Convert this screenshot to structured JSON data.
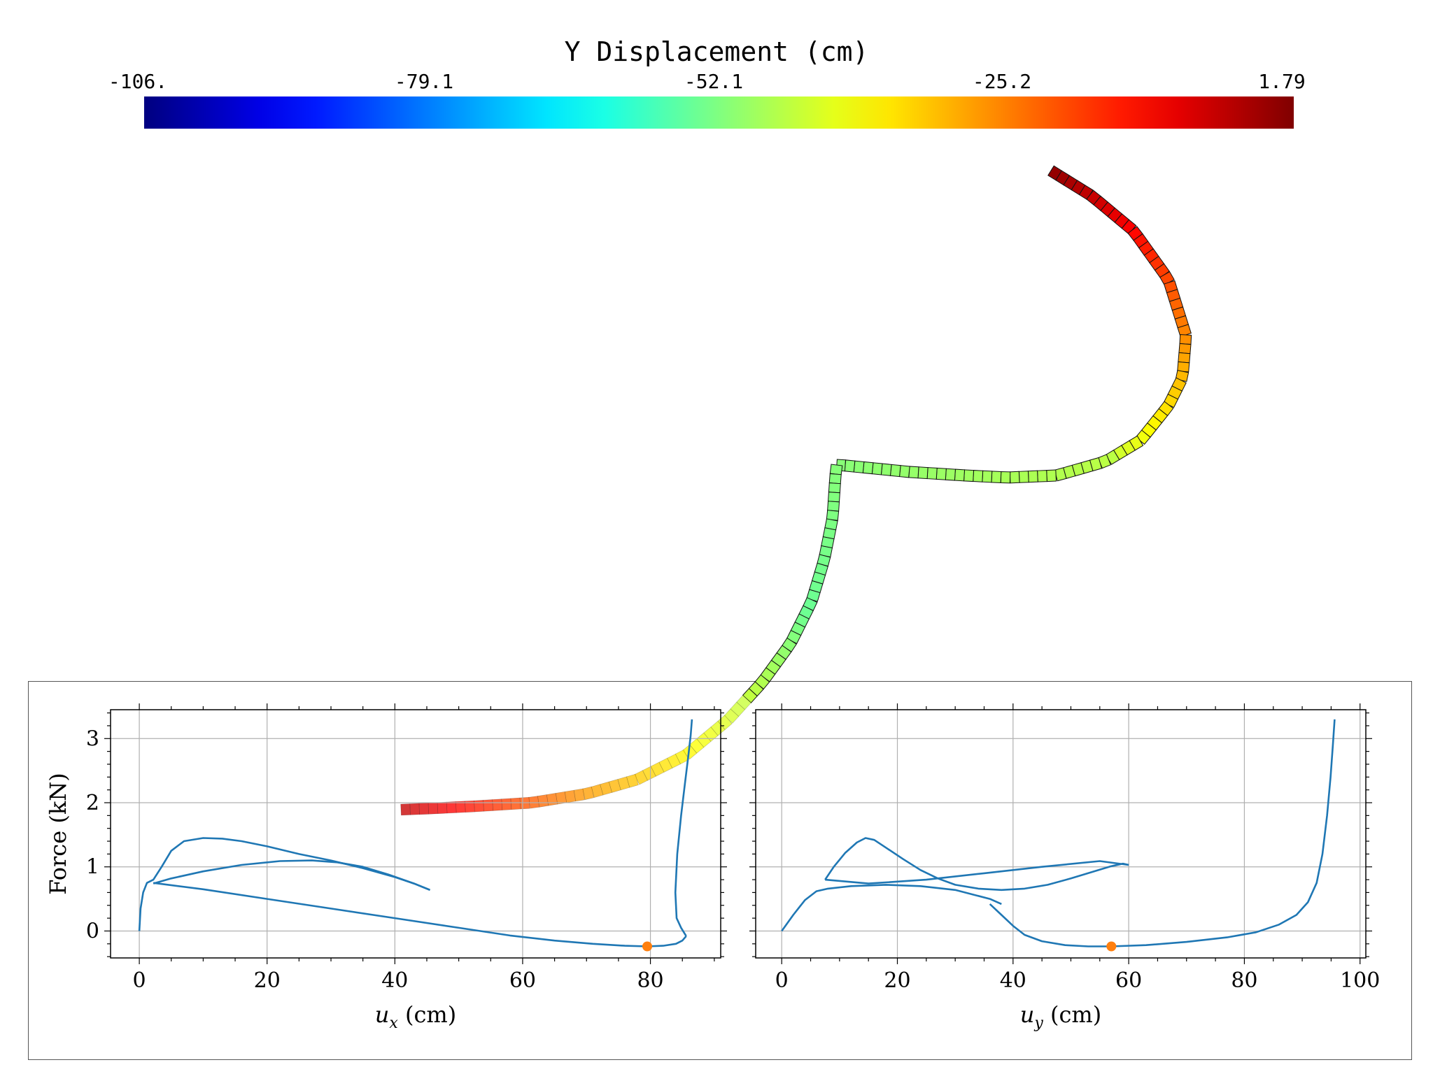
{
  "colorbar": {
    "title": "Y Displacement (cm)",
    "ticks": [
      "-106.",
      "-79.1",
      "-52.1",
      "-25.2",
      "1.79"
    ],
    "colormap": "jet",
    "range": [
      -106,
      1.79
    ]
  },
  "colors": {
    "line": "#1f77b4",
    "marker": "#ff7f0e",
    "grid": "#b0b0b0",
    "frame": "#555555"
  },
  "chart_data": [
    {
      "type": "line",
      "ylabel": "Force (kN)",
      "xlabel_main": "u",
      "xlabel_sub": "x",
      "xlabel_unit": " (cm)",
      "xticks": [
        0,
        20,
        40,
        60,
        80
      ],
      "yticks": [
        0,
        1,
        2,
        3
      ],
      "xlim": [
        -4.5,
        91
      ],
      "ylim": [
        -0.42,
        3.45
      ],
      "grid": true,
      "series": [
        {
          "x": [
            0,
            0.2,
            0.6,
            1.2,
            2.2,
            3.5,
            5,
            7,
            10,
            13,
            16,
            20,
            25,
            30,
            35,
            40,
            43,
            45.5
          ],
          "y": [
            0,
            0.35,
            0.6,
            0.75,
            0.8,
            1.0,
            1.25,
            1.4,
            1.45,
            1.44,
            1.4,
            1.32,
            1.2,
            1.1,
            0.98,
            0.84,
            0.74,
            0.64
          ]
        },
        {
          "x": [
            2.2,
            5,
            10,
            16,
            22,
            27,
            31,
            35,
            39,
            43,
            45.5
          ],
          "y": [
            0.74,
            0.82,
            0.93,
            1.03,
            1.09,
            1.1,
            1.07,
            1.0,
            0.88,
            0.74,
            0.64
          ]
        },
        {
          "x": [
            2.2,
            10,
            20,
            30,
            40,
            50,
            58,
            65,
            71,
            76,
            79.5,
            82,
            84,
            85,
            85.6
          ],
          "y": [
            0.75,
            0.65,
            0.5,
            0.35,
            0.2,
            0.05,
            -0.07,
            -0.15,
            -0.2,
            -0.23,
            -0.24,
            -0.23,
            -0.2,
            -0.15,
            -0.08
          ]
        },
        {
          "x": [
            85.6,
            84.8,
            84.1,
            83.9,
            84.2,
            84.8,
            85.4,
            85.9,
            86.3,
            86.5
          ],
          "y": [
            -0.08,
            0.05,
            0.2,
            0.6,
            1.2,
            1.8,
            2.3,
            2.7,
            3.05,
            3.3
          ]
        }
      ],
      "marker": {
        "x": 79.5,
        "y": -0.24
      }
    },
    {
      "type": "line",
      "xlabel_main": "u",
      "xlabel_sub": "y",
      "xlabel_unit": " (cm)",
      "xticks": [
        0,
        20,
        40,
        60,
        80,
        100
      ],
      "xlim": [
        -4.5,
        101
      ],
      "ylim": [
        -0.42,
        3.45
      ],
      "grid": true,
      "series": [
        {
          "x": [
            0,
            2,
            4,
            6,
            8,
            12,
            18,
            24,
            30,
            36,
            38
          ],
          "y": [
            0,
            0.25,
            0.48,
            0.62,
            0.66,
            0.7,
            0.72,
            0.7,
            0.64,
            0.5,
            0.42
          ]
        },
        {
          "x": [
            7.5,
            9,
            11,
            13,
            14.5,
            16,
            18,
            21,
            24,
            27,
            30,
            34,
            38,
            42,
            46,
            50,
            54,
            57,
            59,
            60
          ],
          "y": [
            0.8,
            1.0,
            1.22,
            1.38,
            1.45,
            1.42,
            1.3,
            1.12,
            0.95,
            0.82,
            0.72,
            0.66,
            0.64,
            0.66,
            0.72,
            0.82,
            0.93,
            1.01,
            1.05,
            1.03
          ]
        },
        {
          "x": [
            7.5,
            15,
            25,
            35,
            45,
            55,
            60
          ],
          "y": [
            0.8,
            0.74,
            0.8,
            0.9,
            1.0,
            1.09,
            1.03
          ]
        },
        {
          "x": [
            36,
            38,
            40,
            42,
            45,
            49,
            53,
            57,
            63,
            70,
            77,
            82,
            86,
            89,
            91,
            92.5,
            93.5,
            94.3,
            94.9,
            95.3,
            95.6
          ],
          "y": [
            0.42,
            0.25,
            0.08,
            -0.06,
            -0.16,
            -0.22,
            -0.24,
            -0.24,
            -0.22,
            -0.17,
            -0.1,
            -0.02,
            0.1,
            0.25,
            0.45,
            0.75,
            1.2,
            1.8,
            2.4,
            2.9,
            3.3
          ]
        }
      ],
      "marker": {
        "x": 57,
        "y": -0.24
      }
    }
  ]
}
